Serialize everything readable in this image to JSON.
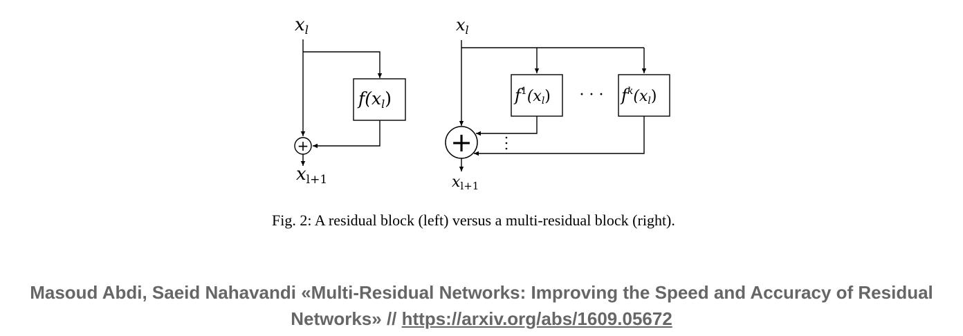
{
  "figure": {
    "left_block": {
      "input_label": "x",
      "input_sub": "l",
      "function_label": "f(x",
      "function_sub": "l",
      "function_close": ")",
      "output_label": "x",
      "output_sub": "l+1",
      "sum_symbol": "+"
    },
    "right_block": {
      "input_label": "x",
      "input_sub": "l",
      "function1_name": "f",
      "function1_sup": "1",
      "function1_arg": "(x",
      "function1_sub": "l",
      "function1_close": ")",
      "functionk_name": "f",
      "functionk_sup": "k",
      "functionk_arg": "(x",
      "functionk_sub": "l",
      "functionk_close": ")",
      "between_dots": "· · ·",
      "output_label": "x",
      "output_sub": "l+1",
      "sum_symbol": "+"
    }
  },
  "caption": {
    "text": "Fig. 2: A residual block (left) versus a multi-residual block (right)."
  },
  "citation": {
    "text": "Masoud Abdi, Saeid Nahavandi «Multi-Residual Networks: Improving the Speed and Accuracy of Residual Networks» // ",
    "link_text": "https://arxiv.org/abs/1609.05672"
  },
  "colors": {
    "line": "#000000",
    "citation_text": "#666666"
  }
}
